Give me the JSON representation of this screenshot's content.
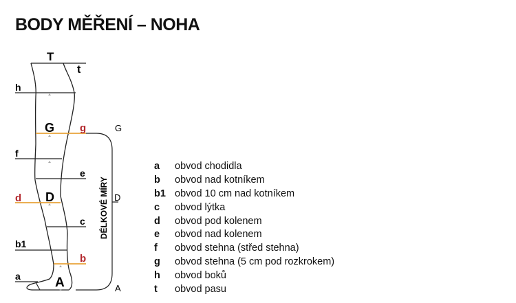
{
  "title": "BODY MĚŘENÍ – NOHA",
  "diagram": {
    "labels": {
      "T": "T",
      "t": "t",
      "h": "h",
      "G": "G",
      "g": "g",
      "f": "f",
      "e": "e",
      "d": "d",
      "D": "D",
      "c": "c",
      "b1": "b1",
      "b": "b",
      "a": "a",
      "A": "A",
      "G2": "G",
      "D2": "D",
      "A2": "A"
    },
    "bracket_label": "DÉLKOVÉ MÍRY",
    "highlight_color": "#e8a33a",
    "highlight_text_color": "#b3282d"
  },
  "legend": [
    {
      "key": "a",
      "text": "obvod chodidla"
    },
    {
      "key": "b",
      "text": "obvod nad kotníkem"
    },
    {
      "key": "b1",
      "text": "obvod 10 cm nad kotníkem"
    },
    {
      "key": "c",
      "text": "obvod lýtka"
    },
    {
      "key": "d",
      "text": "obvod pod kolenem"
    },
    {
      "key": "e",
      "text": "obvod nad kolenem"
    },
    {
      "key": "f",
      "text": "obvod stehna (střed stehna)"
    },
    {
      "key": "g",
      "text": "obvod stehna (5 cm pod rozkrokem)"
    },
    {
      "key": "h",
      "text": "obvod boků"
    },
    {
      "key": "t",
      "text": "obvod pasu"
    }
  ]
}
